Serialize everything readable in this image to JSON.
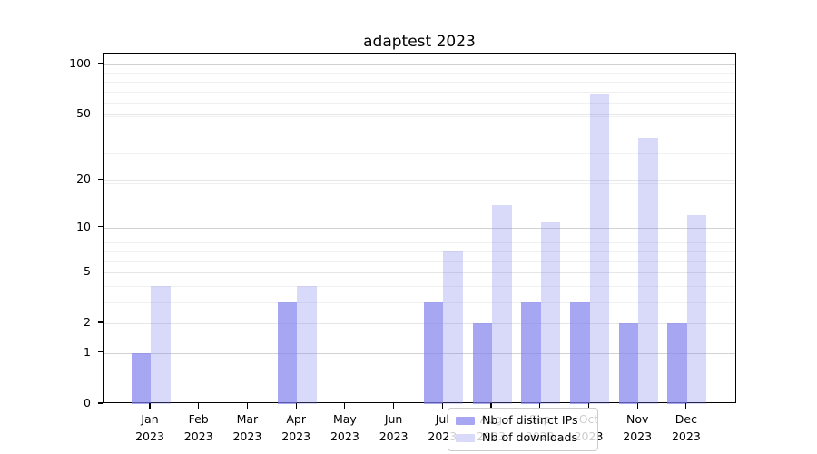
{
  "chart": {
    "title": "adaptest 2023",
    "chart_data": {
      "type": "bar",
      "categories": [
        "Jan",
        "Feb",
        "Mar",
        "Apr",
        "May",
        "Jun",
        "Jul",
        "Aug",
        "Sep",
        "Oct",
        "Nov",
        "Dec"
      ],
      "category_year": "2023",
      "series": [
        {
          "name": "Nb of distinct IPs",
          "color": "#8080ee",
          "alpha": 0.7,
          "values": [
            1,
            0,
            0,
            3,
            0,
            0,
            3,
            2,
            3,
            3,
            2,
            2
          ]
        },
        {
          "name": "Nb of downloads",
          "color": "#8080ee",
          "alpha": 0.3,
          "values": [
            4,
            0,
            0,
            4,
            0,
            0,
            7,
            14,
            11,
            67,
            36,
            12
          ]
        }
      ],
      "title": "adaptest 2023",
      "xlabel": "",
      "ylabel": "",
      "y_scale": "log10(1+v)",
      "ylim": [
        0,
        116
      ],
      "y_ticks": [
        0,
        1,
        2,
        5,
        10,
        20,
        50,
        100
      ],
      "grid": "horizontal, major and faint minor log lines",
      "legend_position": "lower center inside plot"
    },
    "colors": {
      "decade_gridline": "#d2d2d2",
      "labeled_gridline": "#e6e6e6",
      "minor_gridline": "#f0f0f0",
      "spine": "#000000",
      "legend_border": "#cccccc"
    }
  }
}
